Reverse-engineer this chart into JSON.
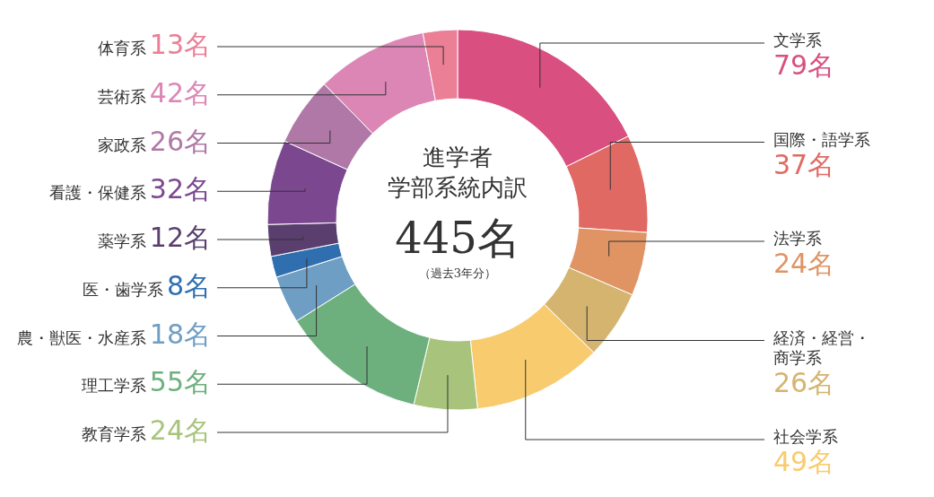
{
  "chart_data": {
    "type": "donut",
    "title": "進学者",
    "subtitle": "学部系統内訳",
    "categories": [
      "文学系",
      "国際・語学系",
      "法学系",
      "経済・経営・商学系",
      "社会学系",
      "教育学系",
      "理工学系",
      "農・獣医・水産系",
      "医・歯学系",
      "薬学系",
      "看護・保健系",
      "家政系",
      "芸術系",
      "体育系"
    ],
    "values": [
      79,
      37,
      24,
      26,
      49,
      24,
      55,
      18,
      8,
      12,
      32,
      26,
      42,
      13
    ],
    "value_labels": [
      "79名",
      "37名",
      "24名",
      "26名",
      "49名",
      "24名",
      "55名",
      "18名",
      "8名",
      "12名",
      "32名",
      "26名",
      "42名",
      "13名"
    ],
    "colors": [
      "#d94f80",
      "#e06a63",
      "#e09464",
      "#d4b46f",
      "#f8cc6e",
      "#a8c47c",
      "#6db07e",
      "#6f9ec4",
      "#2f6fb0",
      "#5a3f6e",
      "#7b4890",
      "#b078a6",
      "#dc86b6",
      "#ea7f96"
    ],
    "annotations": [
      "445名",
      "（過去3年分）"
    ]
  }
}
